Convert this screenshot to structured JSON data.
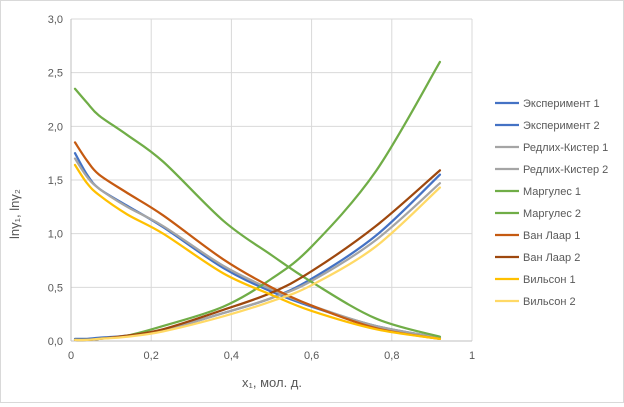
{
  "chart_data": {
    "type": "line",
    "xlabel": "x₁, мол. д.",
    "ylabel": "lnγ₁, lnγ₂",
    "xlim": [
      0,
      1
    ],
    "ylim": [
      0,
      3
    ],
    "x_ticks": [
      "0",
      "0,2",
      "0,4",
      "0,6",
      "0,8",
      "1"
    ],
    "y_ticks": [
      "0,0",
      "0,5",
      "1,0",
      "1,5",
      "2,0",
      "2,5",
      "3,0"
    ],
    "x_tick_values": [
      0,
      0.2,
      0.4,
      0.6,
      0.8,
      1
    ],
    "y_tick_values": [
      0,
      0.5,
      1.0,
      1.5,
      2.0,
      2.5,
      3.0
    ],
    "grid": true,
    "legend_position": "right",
    "series": [
      {
        "name": "Эксперимент 1",
        "color": "#4472c4",
        "x": [
          0.01,
          0.04,
          0.07,
          0.14,
          0.23,
          0.38,
          0.5,
          0.6,
          0.76,
          0.92
        ],
        "y": [
          1.75,
          1.55,
          1.42,
          1.26,
          1.06,
          0.68,
          0.46,
          0.32,
          0.14,
          0.03
        ]
      },
      {
        "name": "Эксперимент 2",
        "color": "#4472c4",
        "x": [
          0.01,
          0.04,
          0.07,
          0.14,
          0.23,
          0.38,
          0.5,
          0.6,
          0.76,
          0.92
        ],
        "y": [
          0.02,
          0.02,
          0.03,
          0.05,
          0.1,
          0.26,
          0.4,
          0.58,
          0.98,
          1.55
        ]
      },
      {
        "name": "Редлих-Кистер 1",
        "color": "#a5a5a5",
        "x": [
          0.01,
          0.04,
          0.07,
          0.14,
          0.23,
          0.38,
          0.5,
          0.6,
          0.76,
          0.92
        ],
        "y": [
          1.7,
          1.53,
          1.42,
          1.25,
          1.07,
          0.7,
          0.48,
          0.33,
          0.14,
          0.03
        ]
      },
      {
        "name": "Редлих-Кистер 2",
        "color": "#a5a5a5",
        "x": [
          0.01,
          0.04,
          0.07,
          0.14,
          0.23,
          0.38,
          0.5,
          0.6,
          0.76,
          0.92
        ],
        "y": [
          0.01,
          0.01,
          0.02,
          0.05,
          0.1,
          0.26,
          0.4,
          0.56,
          0.94,
          1.47
        ]
      },
      {
        "name": "Маргулес 1",
        "color": "#70ad47",
        "x": [
          0.01,
          0.04,
          0.07,
          0.14,
          0.23,
          0.38,
          0.5,
          0.6,
          0.76,
          0.92
        ],
        "y": [
          2.35,
          2.22,
          2.1,
          1.92,
          1.67,
          1.12,
          0.8,
          0.55,
          0.21,
          0.04
        ]
      },
      {
        "name": "Маргулес 2",
        "color": "#70ad47",
        "x": [
          0.01,
          0.04,
          0.07,
          0.14,
          0.23,
          0.38,
          0.5,
          0.6,
          0.76,
          0.92
        ],
        "y": [
          0.01,
          0.01,
          0.02,
          0.05,
          0.14,
          0.32,
          0.58,
          0.88,
          1.58,
          2.6
        ]
      },
      {
        "name": "Ван Лаар 1",
        "color": "#c55a11",
        "x": [
          0.01,
          0.04,
          0.07,
          0.14,
          0.23,
          0.38,
          0.5,
          0.6,
          0.76,
          0.92
        ],
        "y": [
          1.85,
          1.68,
          1.55,
          1.38,
          1.17,
          0.76,
          0.5,
          0.33,
          0.12,
          0.02
        ]
      },
      {
        "name": "Ван Лаар 2",
        "color": "#9e480e",
        "x": [
          0.01,
          0.04,
          0.07,
          0.14,
          0.23,
          0.38,
          0.5,
          0.6,
          0.76,
          0.92
        ],
        "y": [
          0.01,
          0.01,
          0.02,
          0.05,
          0.11,
          0.29,
          0.45,
          0.65,
          1.07,
          1.59
        ]
      },
      {
        "name": "Вильсон 1",
        "color": "#ffc000",
        "x": [
          0.01,
          0.04,
          0.07,
          0.14,
          0.23,
          0.38,
          0.5,
          0.6,
          0.76,
          0.92
        ],
        "y": [
          1.64,
          1.47,
          1.36,
          1.18,
          1.0,
          0.63,
          0.43,
          0.28,
          0.11,
          0.02
        ]
      },
      {
        "name": "Вильсон 2",
        "color": "#ffd966",
        "x": [
          0.01,
          0.04,
          0.07,
          0.14,
          0.23,
          0.38,
          0.5,
          0.6,
          0.76,
          0.92
        ],
        "y": [
          0.01,
          0.01,
          0.02,
          0.04,
          0.09,
          0.23,
          0.37,
          0.52,
          0.88,
          1.43
        ]
      }
    ]
  }
}
